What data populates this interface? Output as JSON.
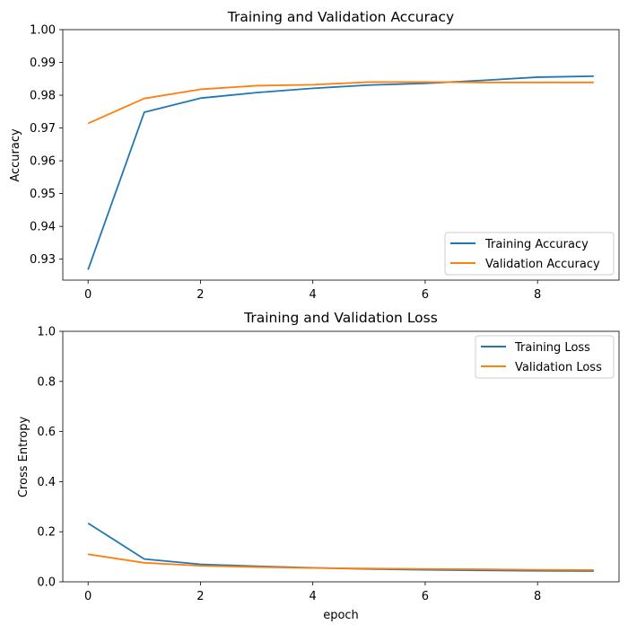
{
  "chart_data": [
    {
      "type": "line",
      "title": "Training and Validation Accuracy",
      "xlabel": "",
      "ylabel": "Accuracy",
      "x": [
        0,
        1,
        2,
        3,
        4,
        5,
        6,
        7,
        8,
        9
      ],
      "xlim": [
        -0.45,
        9.45
      ],
      "ylim": [
        0.9236,
        1.0
      ],
      "xticks": [
        "0",
        "2",
        "4",
        "6",
        "8"
      ],
      "xtick_values": [
        0,
        2,
        4,
        6,
        8
      ],
      "yticks": [
        "0.93",
        "0.94",
        "0.95",
        "0.96",
        "0.97",
        "0.98",
        "0.99",
        "1.00"
      ],
      "ytick_values": [
        0.93,
        0.94,
        0.95,
        0.96,
        0.97,
        0.98,
        0.99,
        1.0
      ],
      "grid": false,
      "legend": "lower-right",
      "series": [
        {
          "name": "Training Accuracy",
          "color": "#1f77b4",
          "values": [
            0.9268,
            0.9748,
            0.9791,
            0.9808,
            0.9821,
            0.9831,
            0.9836,
            0.9845,
            0.9855,
            0.9858
          ]
        },
        {
          "name": "Validation Accuracy",
          "color": "#ff7f0e",
          "values": [
            0.9714,
            0.979,
            0.9818,
            0.9829,
            0.9832,
            0.984,
            0.984,
            0.9839,
            0.9839,
            0.9839
          ]
        }
      ]
    },
    {
      "type": "line",
      "title": "Training and Validation Loss",
      "xlabel": "epoch",
      "ylabel": "Cross Entropy",
      "x": [
        0,
        1,
        2,
        3,
        4,
        5,
        6,
        7,
        8,
        9
      ],
      "xlim": [
        -0.45,
        9.45
      ],
      "ylim": [
        0.0,
        1.0
      ],
      "xticks": [
        "0",
        "2",
        "4",
        "6",
        "8"
      ],
      "xtick_values": [
        0,
        2,
        4,
        6,
        8
      ],
      "yticks": [
        "0.0",
        "0.2",
        "0.4",
        "0.6",
        "0.8",
        "1.0"
      ],
      "ytick_values": [
        0.0,
        0.2,
        0.4,
        0.6,
        0.8,
        1.0
      ],
      "grid": false,
      "legend": "top-right",
      "series": [
        {
          "name": "Training Loss",
          "color": "#1f77b4",
          "values": [
            0.234,
            0.091,
            0.07,
            0.062,
            0.056,
            0.051,
            0.048,
            0.046,
            0.044,
            0.043
          ]
        },
        {
          "name": "Validation Loss",
          "color": "#ff7f0e",
          "values": [
            0.11,
            0.076,
            0.064,
            0.059,
            0.055,
            0.053,
            0.051,
            0.05,
            0.048,
            0.047
          ]
        }
      ]
    }
  ]
}
